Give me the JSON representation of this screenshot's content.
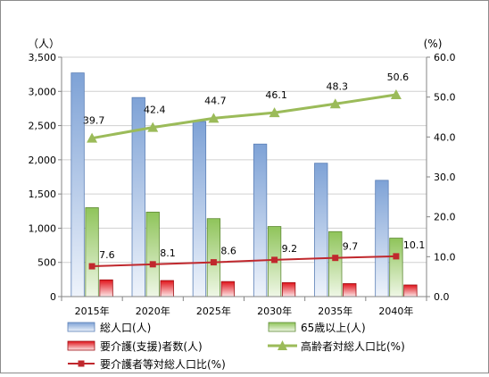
{
  "chart_data": {
    "type": "bar",
    "title": "",
    "categories": [
      "2015年",
      "2020年",
      "2025年",
      "2030年",
      "2035年",
      "2040年"
    ],
    "y_left": {
      "unit_label": "（人）",
      "min": 0,
      "max": 3500,
      "step": 500,
      "tick_labels": [
        "0",
        "500",
        "1,000",
        "1,500",
        "2,000",
        "2,500",
        "3,000",
        "3,500"
      ]
    },
    "y_right": {
      "unit_label": "(%)",
      "min": 0,
      "max": 60,
      "step": 10,
      "tick_labels": [
        "0.0",
        "10.0",
        "20.0",
        "30.0",
        "40.0",
        "50.0",
        "60.0"
      ]
    },
    "grid": true,
    "legend_position": "bottom",
    "series": [
      {
        "name": "総人口(人)",
        "type": "bar",
        "axis": "left",
        "color": "#4f81bd",
        "values": [
          3270,
          2910,
          2560,
          2230,
          1950,
          1700
        ]
      },
      {
        "name": "65歳以上(人)",
        "type": "bar",
        "axis": "left",
        "color": "#7fb543",
        "values": [
          1300,
          1235,
          1140,
          1025,
          950,
          855
        ]
      },
      {
        "name": "要介護(支援)者数(人)",
        "type": "bar",
        "axis": "left",
        "color": "#e0141b",
        "values": [
          245,
          235,
          220,
          205,
          190,
          170
        ]
      },
      {
        "name": "高齢者対総人口比(%)",
        "type": "line",
        "axis": "right",
        "color": "#9bbb59",
        "marker": "triangle",
        "values": [
          39.7,
          42.4,
          44.7,
          46.1,
          48.3,
          50.6
        ],
        "labels": [
          "39.7",
          "42.4",
          "44.7",
          "46.1",
          "48.3",
          "50.6"
        ]
      },
      {
        "name": "要介護者等対総人口比(%)",
        "type": "line",
        "axis": "right",
        "color": "#c0282d",
        "marker": "square",
        "values": [
          7.6,
          8.1,
          8.6,
          9.2,
          9.7,
          10.1
        ],
        "labels": [
          "7.6",
          "8.1",
          "8.6",
          "9.2",
          "9.7",
          "10.1"
        ]
      }
    ]
  }
}
